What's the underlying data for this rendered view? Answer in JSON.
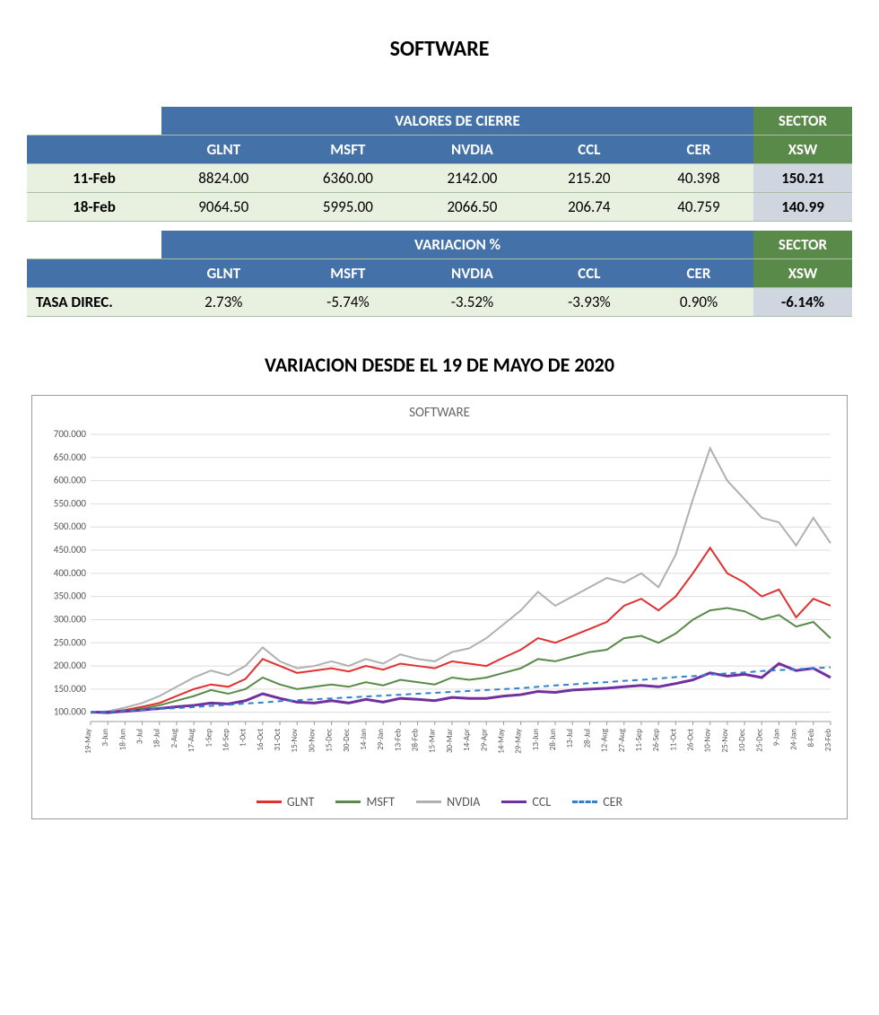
{
  "title": "SOFTWARE",
  "table_closing": {
    "header_main": "VALORES DE CIERRE",
    "header_sector": "SECTOR",
    "columns": [
      "GLNT",
      "MSFT",
      "NVDIA",
      "CCL",
      "CER"
    ],
    "sector_col": "XSW",
    "rows": [
      {
        "date": "11-Feb",
        "values": [
          "8824.00",
          "6360.00",
          "2142.00",
          "215.20",
          "40.398"
        ],
        "sector": "150.21"
      },
      {
        "date": "18-Feb",
        "values": [
          "9064.50",
          "5995.00",
          "2066.50",
          "206.74",
          "40.759"
        ],
        "sector": "140.99"
      }
    ]
  },
  "table_variation": {
    "header_main": "VARIACION %",
    "header_sector": "SECTOR",
    "columns": [
      "GLNT",
      "MSFT",
      "NVDIA",
      "CCL",
      "CER"
    ],
    "sector_col": "XSW",
    "row": {
      "label": "TASA DIREC.",
      "values": [
        "2.73%",
        "-5.74%",
        "-3.52%",
        "-3.93%",
        "0.90%"
      ],
      "sector": "-6.14%"
    }
  },
  "chart": {
    "section_title": "VARIACION DESDE EL 19 DE MAYO DE 2020",
    "inner_title": "SOFTWARE",
    "type": "line",
    "background_color": "#ffffff",
    "grid_color": "#dddddd",
    "ylim": [
      80,
      700
    ],
    "yticks": [
      100,
      150,
      200,
      250,
      300,
      350,
      400,
      450,
      500,
      550,
      600,
      650,
      700
    ],
    "ytick_labels": [
      "100.000",
      "150.000",
      "200.000",
      "250.000",
      "300.000",
      "350.000",
      "400.000",
      "450.000",
      "500.000",
      "550.000",
      "600.000",
      "650.000",
      "700.000"
    ],
    "x_labels": [
      "19-May",
      "3-Jun",
      "18-Jun",
      "3-Jul",
      "18-Jul",
      "2-Aug",
      "17-Aug",
      "1-Sep",
      "16-Sep",
      "1-Oct",
      "16-Oct",
      "31-Oct",
      "15-Nov",
      "30-Nov",
      "15-Dec",
      "30-Dec",
      "14-Jan",
      "29-Jan",
      "13-Feb",
      "28-Feb",
      "15-Mar",
      "30-Mar",
      "14-Apr",
      "29-Apr",
      "14-May",
      "29-May",
      "13-Jun",
      "28-Jun",
      "13-Jul",
      "28-Jul",
      "12-Aug",
      "27-Aug",
      "11-Sep",
      "26-Sep",
      "11-Oct",
      "26-Oct",
      "10-Nov",
      "25-Nov",
      "10-Dec",
      "25-Dec",
      "9-Jan",
      "24-Jan",
      "8-Feb",
      "23-Feb"
    ],
    "series": [
      {
        "name": "GLNT",
        "color": "#e03030",
        "width": 2,
        "dash": "none",
        "values": [
          100,
          100,
          105,
          112,
          120,
          135,
          150,
          160,
          155,
          172,
          215,
          200,
          185,
          190,
          195,
          188,
          200,
          192,
          205,
          200,
          195,
          210,
          205,
          200,
          218,
          235,
          260,
          250,
          265,
          280,
          295,
          330,
          345,
          320,
          350,
          400,
          455,
          400,
          380,
          350,
          365,
          305,
          345,
          330
        ]
      },
      {
        "name": "MSFT",
        "color": "#5a8a4a",
        "width": 2,
        "dash": "none",
        "values": [
          100,
          98,
          102,
          108,
          115,
          125,
          135,
          148,
          140,
          150,
          175,
          160,
          150,
          155,
          160,
          155,
          165,
          158,
          170,
          165,
          160,
          175,
          170,
          175,
          185,
          195,
          215,
          210,
          220,
          230,
          235,
          260,
          265,
          250,
          270,
          300,
          320,
          325,
          318,
          300,
          310,
          285,
          295,
          260
        ]
      },
      {
        "name": "NVDIA",
        "color": "#b0b0b0",
        "width": 2,
        "dash": "none",
        "values": [
          100,
          102,
          110,
          120,
          135,
          155,
          175,
          190,
          180,
          200,
          240,
          210,
          195,
          200,
          210,
          200,
          215,
          205,
          225,
          215,
          210,
          230,
          238,
          260,
          290,
          320,
          360,
          330,
          350,
          370,
          390,
          380,
          400,
          370,
          440,
          560,
          670,
          600,
          560,
          520,
          510,
          460,
          520,
          465
        ]
      },
      {
        "name": "CCL",
        "color": "#7030a0",
        "width": 3,
        "dash": "none",
        "values": [
          100,
          100,
          102,
          105,
          108,
          112,
          115,
          120,
          118,
          125,
          140,
          130,
          122,
          120,
          125,
          120,
          128,
          122,
          130,
          128,
          125,
          132,
          130,
          130,
          135,
          138,
          145,
          143,
          148,
          150,
          152,
          155,
          158,
          155,
          162,
          170,
          185,
          178,
          182,
          175,
          205,
          190,
          195,
          175
        ]
      },
      {
        "name": "CER",
        "color": "#3080d0",
        "width": 2,
        "dash": "6,5",
        "values": [
          100,
          101,
          103,
          105,
          107,
          109,
          111,
          114,
          116,
          119,
          121,
          124,
          126,
          128,
          130,
          132,
          134,
          136,
          138,
          140,
          142,
          144,
          146,
          148,
          150,
          152,
          155,
          158,
          160,
          163,
          165,
          168,
          170,
          173,
          176,
          178,
          181,
          184,
          186,
          189,
          191,
          193,
          195,
          197
        ]
      }
    ],
    "legend": [
      {
        "label": "GLNT",
        "color": "#e03030",
        "dash": "solid"
      },
      {
        "label": "MSFT",
        "color": "#5a8a4a",
        "dash": "solid"
      },
      {
        "label": "NVDIA",
        "color": "#b0b0b0",
        "dash": "solid"
      },
      {
        "label": "CCL",
        "color": "#7030a0",
        "dash": "solid"
      },
      {
        "label": "CER",
        "color": "#3080d0",
        "dash": "dashed"
      }
    ]
  }
}
